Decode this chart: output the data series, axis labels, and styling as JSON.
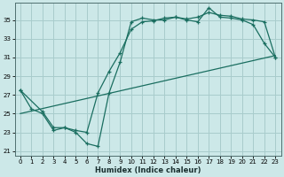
{
  "xlabel": "Humidex (Indice chaleur)",
  "bg_color": "#cce8e8",
  "grid_color": "#a8cccc",
  "line_color": "#1a6e60",
  "xlim": [
    -0.5,
    23.5
  ],
  "ylim": [
    20.5,
    36.8
  ],
  "xticks": [
    0,
    1,
    2,
    3,
    4,
    5,
    6,
    7,
    8,
    9,
    10,
    11,
    12,
    13,
    14,
    15,
    16,
    17,
    18,
    19,
    20,
    21,
    22,
    23
  ],
  "yticks": [
    21,
    23,
    25,
    27,
    29,
    31,
    33,
    35
  ],
  "line1_x": [
    0,
    1,
    2,
    3,
    4,
    5,
    6,
    7,
    8,
    9,
    10,
    11,
    12,
    13,
    14,
    15,
    16,
    17,
    18,
    19,
    20,
    21,
    22,
    23
  ],
  "line1_y": [
    27.5,
    25.5,
    25.0,
    23.2,
    23.5,
    23.0,
    21.8,
    21.5,
    27.2,
    30.5,
    34.8,
    35.2,
    35.0,
    35.0,
    35.3,
    35.0,
    34.8,
    36.3,
    35.3,
    35.2,
    35.0,
    34.5,
    32.5,
    31.0
  ],
  "line2_x": [
    0,
    2,
    3,
    4,
    5,
    6,
    7,
    8,
    9,
    10,
    11,
    12,
    13,
    14,
    15,
    16,
    17,
    18,
    19,
    20,
    21,
    22,
    23
  ],
  "line2_y": [
    27.5,
    25.2,
    23.5,
    23.5,
    23.2,
    23.0,
    27.2,
    29.5,
    31.5,
    34.0,
    34.8,
    34.9,
    35.2,
    35.3,
    35.1,
    35.3,
    35.8,
    35.5,
    35.4,
    35.1,
    35.0,
    34.8,
    31.0
  ],
  "line3_x": [
    0,
    23
  ],
  "line3_y": [
    25.0,
    31.2
  ]
}
